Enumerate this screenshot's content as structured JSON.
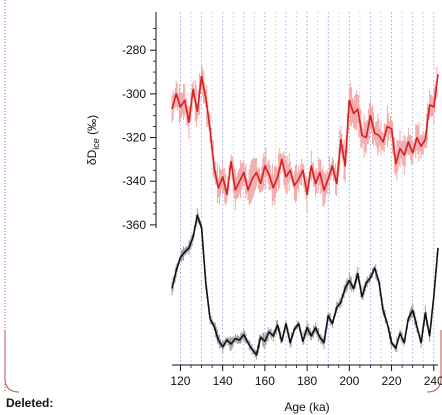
{
  "annotation": {
    "deleted_label": "Deleted:",
    "margin_color": "#c0504d"
  },
  "chart_data": {
    "type": "line",
    "xlabel": "Age (ka)",
    "ylabel": "δD",
    "ylabel_sub": "ice",
    "ylabel_unit": " (‰)",
    "xlim": [
      116,
      242
    ],
    "x_ticks": [
      120,
      140,
      160,
      180,
      200,
      220,
      240
    ],
    "x_tick_labels": [
      "120",
      "140",
      "160",
      "180",
      "200",
      "220",
      "240"
    ],
    "y_ticks": [
      -280,
      -300,
      -320,
      -340,
      -360
    ],
    "y_tick_labels": [
      "-280",
      "-300",
      "-320",
      "-340",
      "-360"
    ],
    "ylim_upper_panel": [
      -366,
      -268
    ],
    "grid": "vertical dotted lines every 5 ka",
    "series": [
      {
        "color": "#d42020",
        "band_color": "#f2a0a0",
        "x": [
          116,
          118,
          120,
          122,
          124,
          126,
          128,
          130,
          132,
          134,
          136,
          138,
          140,
          142,
          144,
          146,
          148,
          150,
          152,
          154,
          156,
          158,
          160,
          162,
          164,
          166,
          168,
          170,
          172,
          174,
          176,
          178,
          180,
          182,
          184,
          186,
          188,
          190,
          192,
          194,
          196,
          198,
          200,
          202,
          204,
          206,
          208,
          210,
          212,
          214,
          216,
          218,
          220,
          222,
          224,
          226,
          228,
          230,
          232,
          234,
          236,
          238,
          240,
          242
        ],
        "y": [
          -307,
          -300,
          -306,
          -303,
          -313,
          -298,
          -308,
          -292,
          -302,
          -316,
          -334,
          -343,
          -338,
          -346,
          -331,
          -344,
          -340,
          -336,
          -344,
          -339,
          -336,
          -341,
          -333,
          -337,
          -343,
          -338,
          -330,
          -338,
          -335,
          -342,
          -339,
          -335,
          -346,
          -333,
          -341,
          -336,
          -344,
          -339,
          -333,
          -341,
          -321,
          -333,
          -303,
          -309,
          -307,
          -319,
          -320,
          -310,
          -318,
          -319,
          -322,
          -315,
          -316,
          -332,
          -325,
          -328,
          -322,
          -327,
          -320,
          -324,
          -321,
          -305,
          -306,
          -291
        ]
      },
      {
        "color": "#111111",
        "band_color": "#9a9a9a",
        "y_axis_labels_shown": false,
        "x": [
          116,
          118,
          120,
          122,
          124,
          126,
          128,
          130,
          132,
          134,
          136,
          138,
          140,
          142,
          144,
          146,
          148,
          150,
          152,
          154,
          156,
          158,
          160,
          162,
          164,
          166,
          168,
          170,
          172,
          174,
          176,
          178,
          180,
          182,
          184,
          186,
          188,
          190,
          192,
          194,
          196,
          198,
          200,
          202,
          204,
          206,
          208,
          210,
          212,
          214,
          216,
          218,
          220,
          222,
          224,
          226,
          228,
          230,
          232,
          234,
          236,
          238,
          240,
          242
        ],
        "y": [
          -300,
          -287,
          -277,
          -273,
          -270,
          -262,
          -246,
          -255,
          -296,
          -322,
          -328,
          -338,
          -343,
          -338,
          -341,
          -337,
          -338,
          -334,
          -340,
          -345,
          -349,
          -336,
          -339,
          -332,
          -335,
          -327,
          -339,
          -326,
          -340,
          -330,
          -326,
          -339,
          -329,
          -335,
          -329,
          -336,
          -340,
          -320,
          -326,
          -314,
          -310,
          -300,
          -294,
          -300,
          -289,
          -306,
          -296,
          -292,
          -285,
          -295,
          -316,
          -326,
          -340,
          -344,
          -333,
          -340,
          -322,
          -316,
          -328,
          -340,
          -318,
          -335,
          -306,
          -270
        ]
      }
    ]
  }
}
